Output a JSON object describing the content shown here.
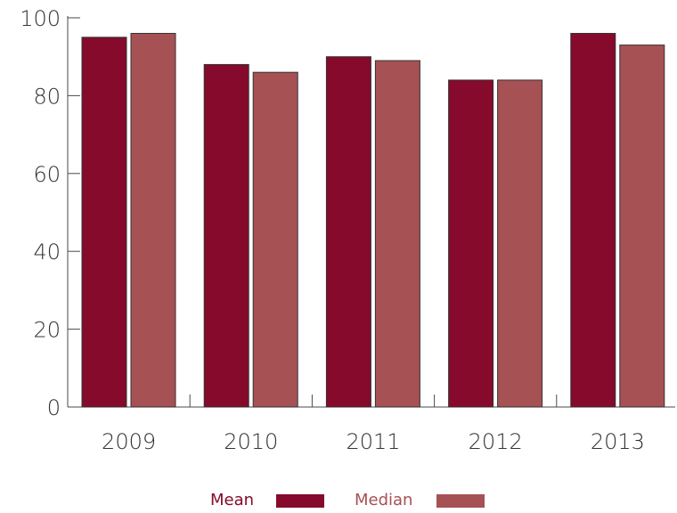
{
  "chart_data": {
    "type": "bar",
    "categories": [
      "2009",
      "2010",
      "2011",
      "2012",
      "2013"
    ],
    "series": [
      {
        "name": "Mean",
        "values": [
          95,
          88,
          90,
          84,
          96
        ],
        "color": "#850a2b"
      },
      {
        "name": "Median",
        "values": [
          96,
          86,
          89,
          84,
          93
        ],
        "color": "#a65154"
      }
    ],
    "yticks": [
      "0",
      "20",
      "40",
      "60",
      "80",
      "100"
    ],
    "ylim": [
      0,
      100
    ],
    "title": "",
    "xlabel": "",
    "ylabel": "",
    "grid": false,
    "legend_position": "bottom"
  }
}
